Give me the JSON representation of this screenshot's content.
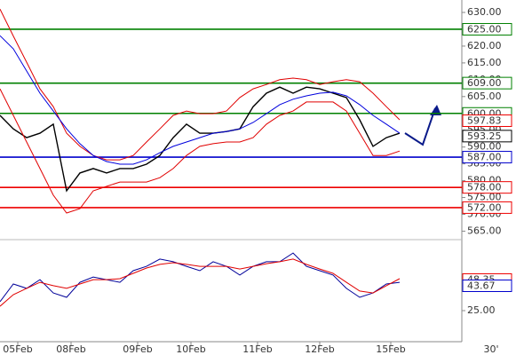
{
  "chart_data": [
    {
      "type": "line",
      "x": [
        0,
        3,
        6,
        9,
        12,
        15,
        18,
        21,
        24,
        27,
        30,
        33,
        36,
        39,
        42,
        45,
        48,
        51,
        54,
        57,
        60,
        63,
        66,
        69,
        72,
        75,
        78,
        81,
        84,
        87,
        90
      ],
      "xlim": [
        0,
        104
      ],
      "ylim": [
        563.8,
        633.7
      ],
      "yticks": [
        {
          "value": 565,
          "label": "565.00"
        },
        {
          "value": 570,
          "label": "570.00"
        },
        {
          "value": 575,
          "label": "575.00"
        },
        {
          "value": 580,
          "label": "580.00"
        },
        {
          "value": 585,
          "label": "585.00"
        },
        {
          "value": 590,
          "label": "590.00"
        },
        {
          "value": 595,
          "label": "595.00"
        },
        {
          "value": 600,
          "label": "600.00"
        },
        {
          "value": 605,
          "label": "605.00"
        },
        {
          "value": 610,
          "label": "610.00"
        },
        {
          "value": 615,
          "label": "615.00"
        },
        {
          "value": 620,
          "label": "620.00"
        },
        {
          "value": 625,
          "label": "625.00"
        },
        {
          "value": 630,
          "label": "630.00"
        }
      ],
      "series": [
        {
          "color": "#000000",
          "values": [
            599.4,
            595.4,
            592.8,
            594.1,
            596.8,
            577,
            582.3,
            583.6,
            582.3,
            583.6,
            583.6,
            584.9,
            587.5,
            592.8,
            596.8,
            594.1,
            594.1,
            594.6,
            595.4,
            602,
            606,
            607.8,
            606,
            607.8,
            607.3,
            606,
            604.7,
            598.1,
            590.2,
            592.8,
            594.1
          ]
        },
        {
          "color": "#e00000",
          "values": [
            631,
            623,
            615.2,
            607.3,
            602,
            594.1,
            590.2,
            587.5,
            586.2,
            586.2,
            587.5,
            591.5,
            595.4,
            599.4,
            600.7,
            599.9,
            599.9,
            600.7,
            604.7,
            607.3,
            608.6,
            610,
            610.5,
            610,
            608.6,
            609.4,
            610,
            609.4,
            606,
            602,
            598.1
          ]
        },
        {
          "color": "#e00000",
          "values": [
            607.3,
            599.4,
            591.5,
            583.6,
            575.7,
            570.4,
            571.7,
            577,
            578.3,
            579.6,
            579.6,
            579.6,
            580.9,
            583.6,
            587.5,
            590.2,
            591,
            591.5,
            591.5,
            592.8,
            596.8,
            599.4,
            600.7,
            603.4,
            603.4,
            603.4,
            600.7,
            594.1,
            587.5,
            587.5,
            588.8
          ]
        },
        {
          "color": "#0000dd",
          "values": [
            623.1,
            619.2,
            612.6,
            606,
            600.7,
            595.4,
            591,
            587.5,
            585.7,
            584.9,
            584.9,
            586.2,
            588.3,
            590.2,
            591.5,
            592.8,
            594.1,
            594.6,
            595.4,
            597.3,
            599.9,
            602.6,
            604.2,
            605.2,
            606,
            606.3,
            605.2,
            602.6,
            599.4,
            596.8,
            594.1
          ]
        }
      ],
      "levels": {
        "values": [
          625,
          609,
          600,
          587,
          578,
          572
        ],
        "value_labels": [
          "625.00",
          "609.00",
          "600.00",
          "587.00",
          "578.00",
          "572.00"
        ],
        "colors": [
          "#008000",
          "#008000",
          "#008000",
          "#0000cc",
          "#ee0000",
          "#ee0000"
        ]
      },
      "last_values": {
        "values": [
          597.83,
          593.25
        ],
        "value_labels": [
          "597.83",
          "593.25"
        ],
        "colors": [
          "#ee0000",
          "#000000"
        ]
      }
    },
    {
      "type": "line",
      "x": [
        0,
        3,
        6,
        9,
        12,
        15,
        18,
        21,
        24,
        27,
        30,
        33,
        36,
        39,
        42,
        45,
        48,
        51,
        54,
        57,
        60,
        63,
        66,
        69,
        72,
        75,
        78,
        81,
        84,
        87,
        90
      ],
      "xlim": [
        0,
        104
      ],
      "ylim": [
        0,
        80
      ],
      "yticks": [
        {
          "value": 25,
          "label": "25.00"
        }
      ],
      "xticks": [
        {
          "value": 4,
          "label": "05Feb"
        },
        {
          "value": 16,
          "label": "08Feb"
        },
        {
          "value": 31,
          "label": "09Feb"
        },
        {
          "value": 43,
          "label": "10Feb"
        },
        {
          "value": 58,
          "label": "11Feb"
        },
        {
          "value": 72,
          "label": "12Feb"
        },
        {
          "value": 88,
          "label": "15Feb"
        }
      ],
      "period_label": "30'",
      "series": [
        {
          "color": "#000099",
          "values": [
            31.7,
            45,
            41.7,
            48.3,
            38.3,
            35,
            46.3,
            50.3,
            48.3,
            46.3,
            55,
            58.3,
            63.7,
            61.7,
            58.3,
            55,
            61.7,
            58.3,
            51.7,
            58.3,
            61.7,
            61.7,
            68.3,
            58.3,
            55,
            51.7,
            41.7,
            35,
            38.3,
            45,
            46.3
          ]
        },
        {
          "color": "#e00000",
          "values": [
            28.3,
            37,
            41.7,
            46.3,
            43.7,
            41.7,
            45,
            48.3,
            48.3,
            49,
            53,
            57,
            59.7,
            61,
            59.7,
            58.3,
            58.3,
            58.3,
            56.3,
            58.3,
            60.3,
            61.7,
            63.7,
            59.7,
            56.3,
            53,
            46.3,
            39.7,
            38.3,
            43.7,
            49
          ]
        }
      ],
      "last_values": {
        "values": [
          48.35,
          43.67
        ],
        "value_labels": [
          "48.35",
          "43.67"
        ],
        "colors": [
          "#ee0000",
          "#0000cc"
        ]
      }
    }
  ]
}
